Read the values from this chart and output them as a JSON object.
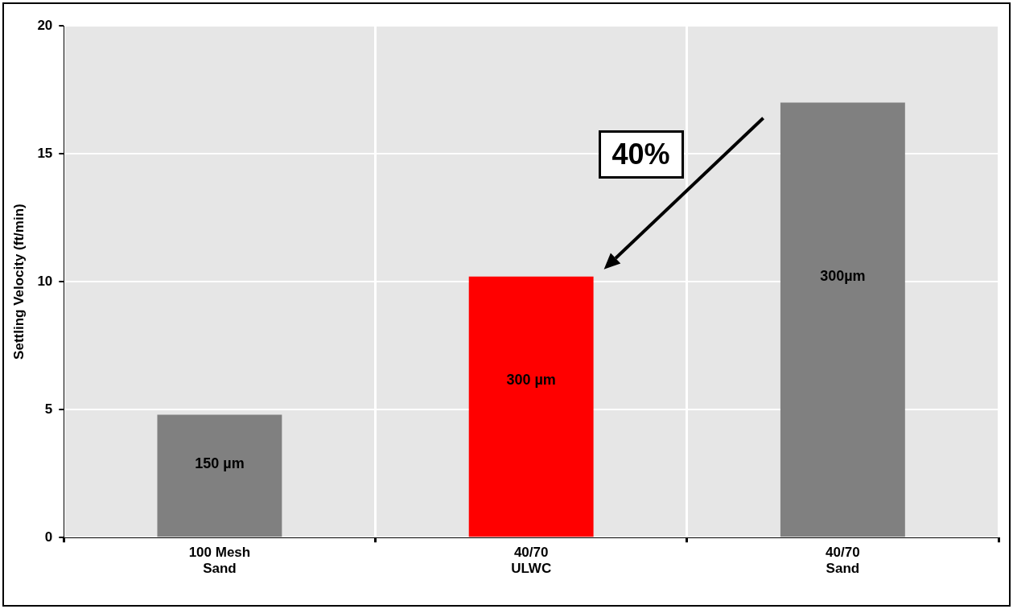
{
  "chart_data": {
    "type": "bar",
    "ylabel": "Settling Velocity (ft/min)",
    "categories": [
      "100 Mesh\nSand",
      "40/70\nULWC",
      "40/70\nSand"
    ],
    "values": [
      4.8,
      10.2,
      17.0
    ],
    "colors": [
      "#808080",
      "#ff0000",
      "#808080"
    ],
    "ylim": [
      0,
      20
    ],
    "yticks": [
      0,
      5,
      10,
      15,
      20
    ],
    "grid": true,
    "legend": false,
    "annotations": [
      "150 µm",
      "300 µm",
      "300µm",
      "40%"
    ]
  }
}
